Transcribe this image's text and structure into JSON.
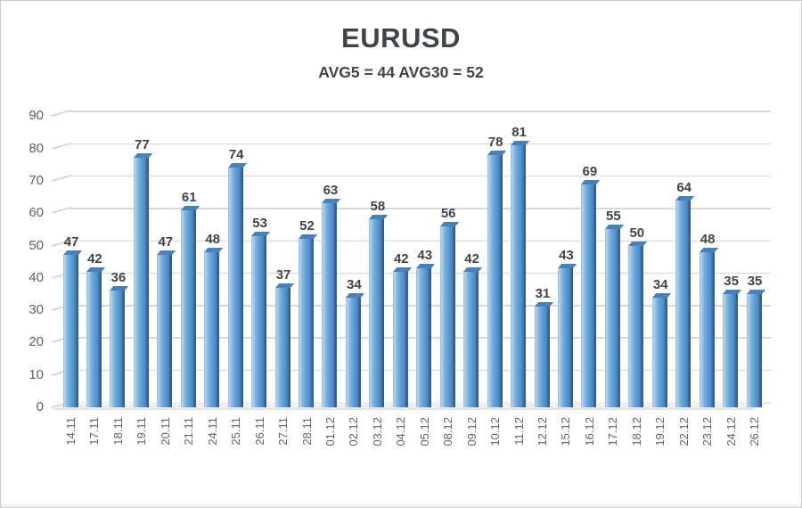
{
  "chart_data": {
    "type": "bar",
    "title": "EURUSD",
    "subtitle": "AVG5 = 44 AVG30 = 52",
    "categories": [
      "14.11",
      "17.11",
      "18.11",
      "19.11",
      "20.11",
      "21.11",
      "24.11",
      "25.11",
      "26.11",
      "27.11",
      "28.11",
      "01.12",
      "02.12",
      "03.12",
      "04.12",
      "05.12",
      "08.12",
      "09.12",
      "10.12",
      "11.12",
      "12.12",
      "15.12",
      "16.12",
      "17.12",
      "18.12",
      "19.12",
      "22.12",
      "23.12",
      "24.12",
      "26.12"
    ],
    "values": [
      47,
      42,
      36,
      77,
      47,
      61,
      48,
      74,
      53,
      37,
      52,
      63,
      34,
      58,
      42,
      43,
      56,
      42,
      78,
      81,
      31,
      43,
      69,
      55,
      50,
      34,
      64,
      48,
      35,
      35
    ],
    "yticks": [
      0,
      10,
      20,
      30,
      40,
      50,
      60,
      70,
      80,
      90
    ],
    "ylim": [
      0,
      90
    ],
    "xlabel": "",
    "ylabel": "",
    "grid": true,
    "legend": "none",
    "colors": {
      "bar_main": "#5b9bd5",
      "bar_light": "#b3d4ee",
      "bar_dark": "#2e5c8e",
      "bar_cap": "#4a7fb8",
      "gridline": "#d8d8d8",
      "axis_text": "#596370",
      "value_text": "#3e444b",
      "title_text": "#3f4448",
      "background": "#ffffff"
    }
  }
}
